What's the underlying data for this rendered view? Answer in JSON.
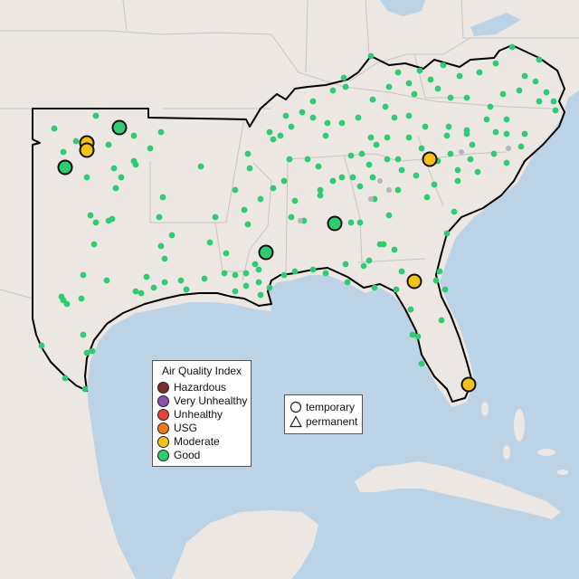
{
  "legend": {
    "title": "Air Quality Index",
    "categories": [
      {
        "label": "Hazardous",
        "color": "#7e2b2b"
      },
      {
        "label": "Very Unhealthy",
        "color": "#8c4fb0"
      },
      {
        "label": "Unhealthy",
        "color": "#e8413c"
      },
      {
        "label": "USG",
        "color": "#f07a1a"
      },
      {
        "label": "Moderate",
        "color": "#f5c116"
      },
      {
        "label": "Good",
        "color": "#2ecc71"
      }
    ]
  },
  "shape_legend": {
    "temporary": "temporary",
    "permanent": "permanent"
  },
  "colors": {
    "ocean": "#bcd3e6",
    "land": "#ece7e2",
    "border": "#c9c4c0",
    "region_outline": "#000000"
  }
}
